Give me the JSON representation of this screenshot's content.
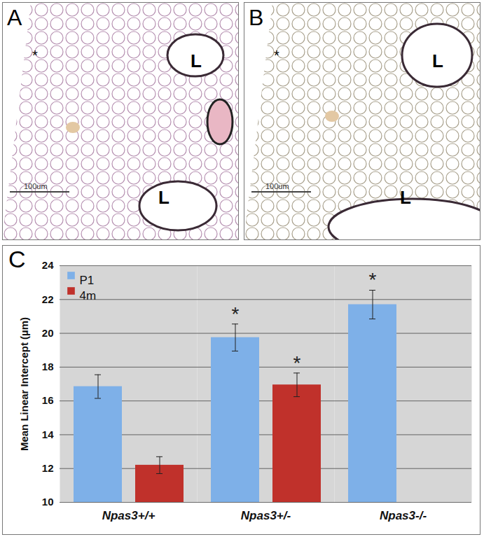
{
  "figure_panels": [
    {
      "label": "A",
      "field_marker": "*",
      "lumen_labels": [
        "L",
        "L"
      ],
      "scale_bar": "100um"
    },
    {
      "label": "B",
      "field_marker": "*",
      "lumen_labels": [
        "L",
        "L"
      ],
      "scale_bar": "100um"
    },
    {
      "label": "C"
    }
  ],
  "chart_data": {
    "type": "bar",
    "categories": [
      "Npas3+/+",
      "Npas3+/-",
      "Npas3-/-"
    ],
    "series": [
      {
        "name": "P1",
        "color": "#7eb0e8",
        "values": [
          16.85,
          19.75,
          21.7
        ],
        "errors": [
          0.7,
          0.8,
          0.85
        ]
      },
      {
        "name": "4m",
        "color": "#c0312b",
        "values": [
          12.2,
          16.95,
          null
        ],
        "errors": [
          0.5,
          0.7,
          null
        ]
      }
    ],
    "annotations": [
      {
        "text": "*",
        "series": "P1",
        "category": "Npas3+/-"
      },
      {
        "text": "*",
        "series": "4m",
        "category": "Npas3+/-"
      },
      {
        "text": "*",
        "series": "P1",
        "category": "Npas3-/-"
      }
    ],
    "ylabel": "Mean Linear Intercept (µm)",
    "ylim": [
      10,
      24
    ],
    "yticks": [
      10,
      12,
      14,
      16,
      18,
      20,
      22,
      24
    ],
    "grid": true,
    "legend": "top-left"
  }
}
